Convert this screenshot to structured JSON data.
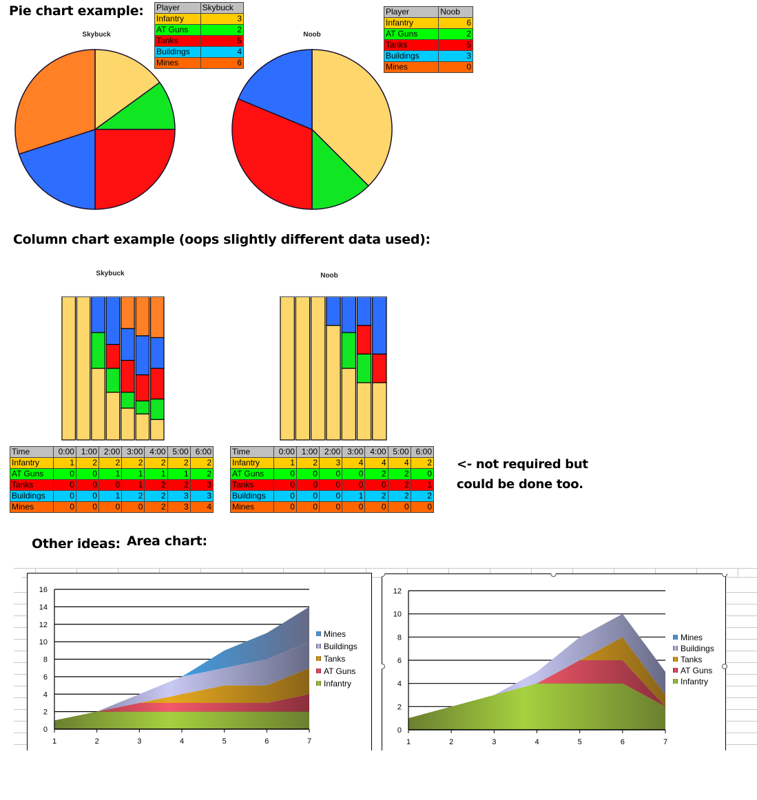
{
  "headings": {
    "pie": "Pie chart example:",
    "column": "Column chart example (oops slightly different data used):",
    "note_line1": "<- not required but",
    "note_line2": "could be done too.",
    "other": "Other ideas:",
    "area": "Area chart:"
  },
  "colors": {
    "Infantry": "#ffcc00",
    "AT Guns": "#00ff00",
    "Tanks": "#ff0000",
    "Buildings": "#00ccff",
    "Mines": "#ff6600",
    "table_header": "#c0c0c0"
  },
  "pie_tables": [
    {
      "header": [
        "Player",
        "Skybuck"
      ],
      "rows": [
        [
          "Infantry",
          "3"
        ],
        [
          "AT Guns",
          "2"
        ],
        [
          "Tanks",
          "5"
        ],
        [
          "Buildings",
          "4"
        ],
        [
          "Mines",
          "6"
        ]
      ]
    },
    {
      "header": [
        "Player",
        "Noob"
      ],
      "rows": [
        [
          "Infantry",
          "6"
        ],
        [
          "AT Guns",
          "2"
        ],
        [
          "Tanks",
          "5"
        ],
        [
          "Buildings",
          "3"
        ],
        [
          "Mines",
          "0"
        ]
      ]
    }
  ],
  "time_tables": [
    {
      "header": [
        "Time",
        "0:00",
        "1:00",
        "2:00",
        "3:00",
        "4:00",
        "5:00",
        "6:00"
      ],
      "rows": [
        [
          "Infantry",
          "1",
          "2",
          "2",
          "2",
          "2",
          "2",
          "2"
        ],
        [
          "AT Guns",
          "0",
          "0",
          "1",
          "1",
          "1",
          "1",
          "2"
        ],
        [
          "Tanks",
          "0",
          "0",
          "0",
          "1",
          "2",
          "2",
          "3"
        ],
        [
          "Buildings",
          "0",
          "0",
          "1",
          "2",
          "2",
          "3",
          "3"
        ],
        [
          "Mines",
          "0",
          "0",
          "0",
          "0",
          "2",
          "3",
          "4"
        ]
      ]
    },
    {
      "header": [
        "Time",
        "0:00",
        "1:00",
        "2:00",
        "3:00",
        "4:00",
        "5:00",
        "6:00"
      ],
      "rows": [
        [
          "Infantry",
          "1",
          "2",
          "3",
          "4",
          "4",
          "4",
          "2"
        ],
        [
          "AT Guns",
          "0",
          "0",
          "0",
          "0",
          "2",
          "2",
          "0"
        ],
        [
          "Tanks",
          "0",
          "0",
          "0",
          "0",
          "0",
          "2",
          "1"
        ],
        [
          "Buildings",
          "0",
          "0",
          "0",
          "1",
          "2",
          "2",
          "2"
        ],
        [
          "Mines",
          "0",
          "0",
          "0",
          "0",
          "0",
          "0",
          "0"
        ]
      ]
    }
  ],
  "chart_data": [
    {
      "type": "pie",
      "title": "Skybuck",
      "labels": [
        "Infantry",
        "AT Guns",
        "Tanks",
        "Buildings",
        "Mines"
      ],
      "values": [
        3,
        2,
        5,
        4,
        6
      ],
      "colors": [
        "#fdd76b",
        "#11e622",
        "#ff1010",
        "#2e6eff",
        "#ff8025"
      ]
    },
    {
      "type": "pie",
      "title": "Noob",
      "labels": [
        "Infantry",
        "AT Guns",
        "Tanks",
        "Buildings",
        "Mines"
      ],
      "values": [
        6,
        2,
        5,
        3,
        0
      ],
      "colors": [
        "#fdd76b",
        "#11e622",
        "#ff1010",
        "#2e6eff",
        "#ff8025"
      ]
    },
    {
      "type": "bar",
      "stacked": "100%",
      "title": "Skybuck",
      "categories": [
        "0:00",
        "1:00",
        "2:00",
        "3:00",
        "4:00",
        "5:00",
        "6:00"
      ],
      "series": [
        {
          "name": "Infantry",
          "values": [
            1,
            2,
            2,
            2,
            2,
            2,
            2
          ],
          "color": "#fdd76b"
        },
        {
          "name": "AT Guns",
          "values": [
            0,
            0,
            1,
            1,
            1,
            1,
            2
          ],
          "color": "#11e622"
        },
        {
          "name": "Tanks",
          "values": [
            0,
            0,
            0,
            1,
            2,
            2,
            3
          ],
          "color": "#ff1010"
        },
        {
          "name": "Buildings",
          "values": [
            0,
            0,
            1,
            2,
            2,
            3,
            3
          ],
          "color": "#2e6eff"
        },
        {
          "name": "Mines",
          "values": [
            0,
            0,
            0,
            0,
            2,
            3,
            4
          ],
          "color": "#ff8025"
        }
      ]
    },
    {
      "type": "bar",
      "stacked": "100%",
      "title": "Noob",
      "categories": [
        "0:00",
        "1:00",
        "2:00",
        "3:00",
        "4:00",
        "5:00",
        "6:00"
      ],
      "series": [
        {
          "name": "Infantry",
          "values": [
            1,
            2,
            3,
            4,
            4,
            4,
            2
          ],
          "color": "#fdd76b"
        },
        {
          "name": "AT Guns",
          "values": [
            0,
            0,
            0,
            0,
            2,
            2,
            0
          ],
          "color": "#11e622"
        },
        {
          "name": "Tanks",
          "values": [
            0,
            0,
            0,
            0,
            0,
            2,
            1
          ],
          "color": "#ff1010"
        },
        {
          "name": "Buildings",
          "values": [
            0,
            0,
            0,
            1,
            2,
            2,
            2
          ],
          "color": "#2e6eff"
        },
        {
          "name": "Mines",
          "values": [
            0,
            0,
            0,
            0,
            0,
            0,
            0
          ],
          "color": "#ff8025"
        }
      ]
    },
    {
      "type": "area",
      "stacked": true,
      "title": "",
      "x": [
        1,
        2,
        3,
        4,
        5,
        6,
        7
      ],
      "ylim": [
        0,
        16
      ],
      "yticks": [
        0,
        2,
        4,
        6,
        8,
        10,
        12,
        14,
        16
      ],
      "grid": true,
      "legend": "right",
      "series": [
        {
          "name": "Infantry",
          "values": [
            1,
            2,
            2,
            2,
            2,
            2,
            2
          ],
          "color": "#a6d13f",
          "dark": "#6b8030"
        },
        {
          "name": "AT Guns",
          "values": [
            0,
            0,
            1,
            1,
            1,
            1,
            2
          ],
          "color": "#f4596b",
          "dark": "#8a2f3c"
        },
        {
          "name": "Tanks",
          "values": [
            0,
            0,
            0,
            1,
            2,
            2,
            3
          ],
          "color": "#e6a91f",
          "dark": "#8a6418"
        },
        {
          "name": "Buildings",
          "values": [
            0,
            0,
            1,
            2,
            2,
            3,
            3
          ],
          "color": "#c9c9f4",
          "dark": "#676a86"
        },
        {
          "name": "Mines",
          "values": [
            0,
            0,
            0,
            0,
            2,
            3,
            4
          ],
          "color": "#3aa1ea",
          "dark": "#676a86"
        }
      ]
    },
    {
      "type": "area",
      "stacked": true,
      "title": "",
      "x": [
        1,
        2,
        3,
        4,
        5,
        6,
        7
      ],
      "ylim": [
        0,
        12
      ],
      "yticks": [
        0,
        2,
        4,
        6,
        8,
        10,
        12
      ],
      "grid": true,
      "legend": "right",
      "series": [
        {
          "name": "Infantry",
          "values": [
            1,
            2,
            3,
            4,
            4,
            4,
            2
          ],
          "color": "#a6d13f",
          "dark": "#6b8030"
        },
        {
          "name": "AT Guns",
          "values": [
            0,
            0,
            0,
            0,
            2,
            2,
            0
          ],
          "color": "#f4596b",
          "dark": "#8a2f3c"
        },
        {
          "name": "Tanks",
          "values": [
            0,
            0,
            0,
            0,
            0,
            2,
            1
          ],
          "color": "#e6a91f",
          "dark": "#8a6418"
        },
        {
          "name": "Buildings",
          "values": [
            0,
            0,
            0,
            1,
            2,
            2,
            2
          ],
          "color": "#c9c9f4",
          "dark": "#676a86"
        },
        {
          "name": "Mines",
          "values": [
            0,
            0,
            0,
            0,
            0,
            0,
            0
          ],
          "color": "#3aa1ea",
          "dark": "#676a86"
        }
      ]
    }
  ]
}
